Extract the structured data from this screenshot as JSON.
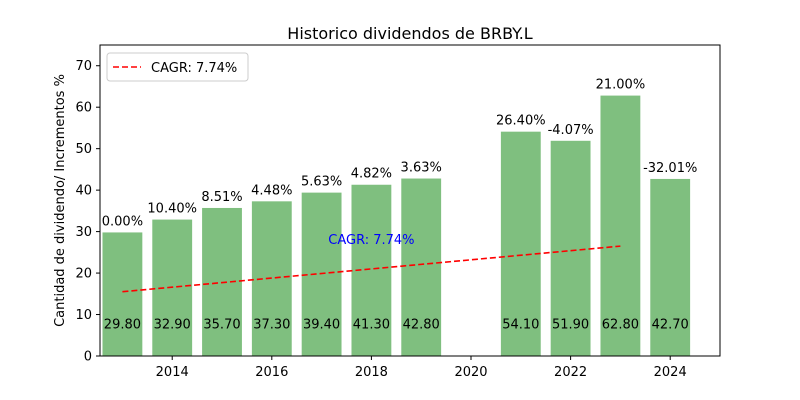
{
  "chart_data": {
    "type": "bar",
    "title": "Historico dividendos de BRBY.L",
    "xlabel": "",
    "ylabel": "Cantidad de dividendo/ Incrementos %",
    "xlim": [
      2012.55,
      2025.0
    ],
    "ylim": [
      0,
      75
    ],
    "x_ticks": [
      2014,
      2016,
      2018,
      2020,
      2022,
      2024
    ],
    "y_ticks": [
      0,
      10,
      20,
      30,
      40,
      50,
      60,
      70
    ],
    "grid": false,
    "legend_position": "top-left",
    "x": [
      2013,
      2014,
      2015,
      2016,
      2017,
      2018,
      2019,
      2021,
      2022,
      2023,
      2024
    ],
    "values": [
      29.8,
      32.9,
      35.7,
      37.3,
      39.4,
      41.3,
      42.8,
      54.1,
      51.9,
      62.8,
      42.7
    ],
    "value_labels": [
      "29.80",
      "32.90",
      "35.70",
      "37.30",
      "39.40",
      "41.30",
      "42.80",
      "54.10",
      "51.90",
      "62.80",
      "42.70"
    ],
    "increment_labels": [
      "0.00%",
      "10.40%",
      "8.51%",
      "4.48%",
      "5.63%",
      "4.82%",
      "3.63%",
      "26.40%",
      "-4.07%",
      "21.00%",
      "-32.01%"
    ],
    "bar_color": "#7fbf7f",
    "trend": {
      "label": "CAGR: 7.74%",
      "x": [
        2013,
        2023
      ],
      "y": [
        15.5,
        26.5
      ],
      "color": "#ff0000",
      "style": "dashed"
    },
    "annotation": {
      "text": "CAGR: 7.74%",
      "x": 2018,
      "y": 28.2,
      "color": "#0000ff"
    }
  }
}
